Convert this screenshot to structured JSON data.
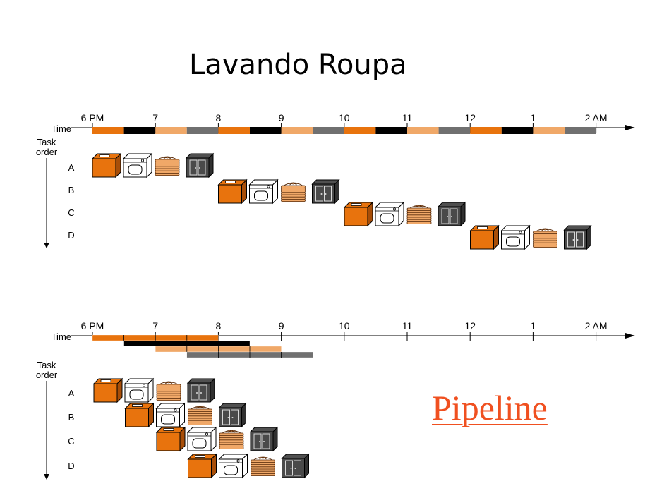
{
  "title": "Lavando Roupa",
  "pipeline_label": "Pipeline",
  "axis": {
    "time_label": "Time",
    "task_order_line1": "Task",
    "task_order_line2": "order",
    "ticks": [
      "6 PM",
      "7",
      "8",
      "9",
      "10",
      "11",
      "12",
      "1",
      "2 AM"
    ]
  },
  "tasks": [
    "A",
    "B",
    "C",
    "D"
  ],
  "stages": [
    "washer",
    "dryer",
    "folder",
    "storer"
  ],
  "colors": {
    "washer": "#e8730d",
    "dryer": "#000000",
    "folder": "#f0a868",
    "storer": "#707070",
    "pipeline": "#f05020"
  }
}
